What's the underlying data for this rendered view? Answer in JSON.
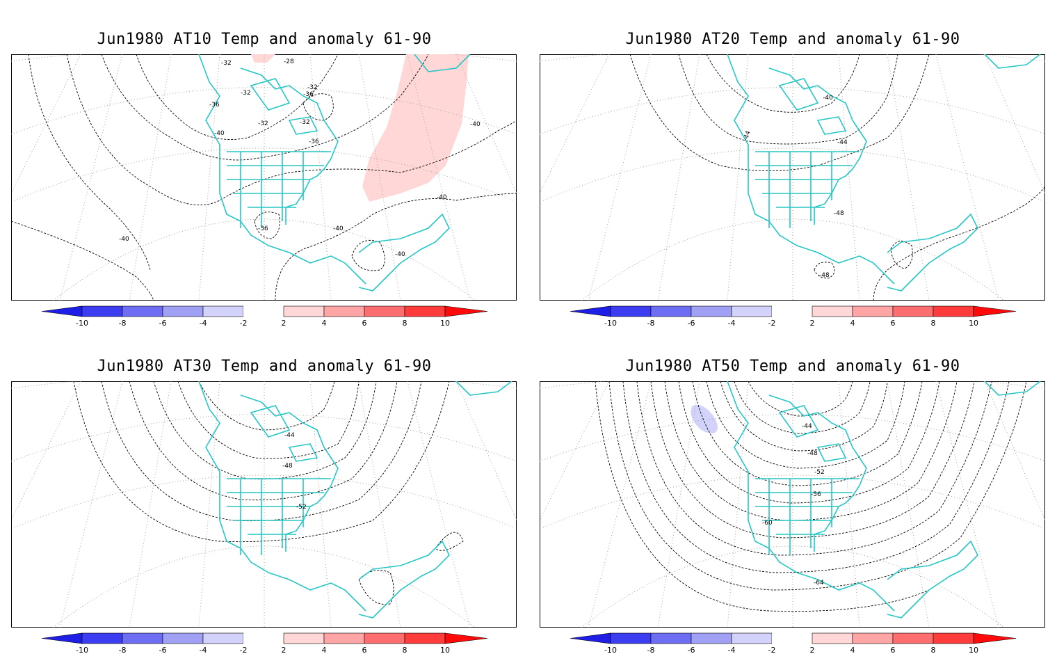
{
  "colorbar": {
    "ticks": [
      "-10",
      "-8",
      "-6",
      "-4",
      "-2",
      "2",
      "4",
      "6",
      "8",
      "10"
    ],
    "colors": [
      "#1e1ee6",
      "#3c3cf0",
      "#6e6ef5",
      "#a0a0f5",
      "#d2d2fa",
      "#ffffff",
      "#ffd7d7",
      "#ffa5a5",
      "#ff6e6e",
      "#ff3c3c",
      "#ff0a0a"
    ]
  },
  "map_style": {
    "coast_color": "#26c6c6",
    "contour_color": "#000000",
    "grid_color": "#a0a0a0"
  },
  "panels": [
    {
      "title": "Jun1980 AT10 Temp and anomaly 61-90",
      "contour_labels": [
        "-32",
        "-28",
        "-32",
        "-36",
        "-32",
        "-36",
        "-32",
        "-32",
        "-36",
        "-40",
        "-36",
        "-40",
        "-40",
        "-40",
        "-40",
        "-40"
      ],
      "anomaly_patches": [
        {
          "value": 2,
          "color": "#ffd7d7",
          "polarity": "positive"
        }
      ]
    },
    {
      "title": "Jun1980 AT20 Temp and anomaly 61-90",
      "contour_labels": [
        "-40",
        "-44",
        "-44",
        "-48",
        "-48"
      ],
      "anomaly_patches": []
    },
    {
      "title": "Jun1980 AT30 Temp and anomaly 61-90",
      "contour_labels": [
        "-44",
        "-48",
        "-52"
      ],
      "anomaly_patches": []
    },
    {
      "title": "Jun1980 AT50 Temp and anomaly 61-90",
      "contour_labels": [
        "-44",
        "-48",
        "-52",
        "-56",
        "-60",
        "-64"
      ],
      "anomaly_patches": [
        {
          "value": -2,
          "color": "#d2d2fa",
          "polarity": "negative"
        }
      ]
    }
  ]
}
